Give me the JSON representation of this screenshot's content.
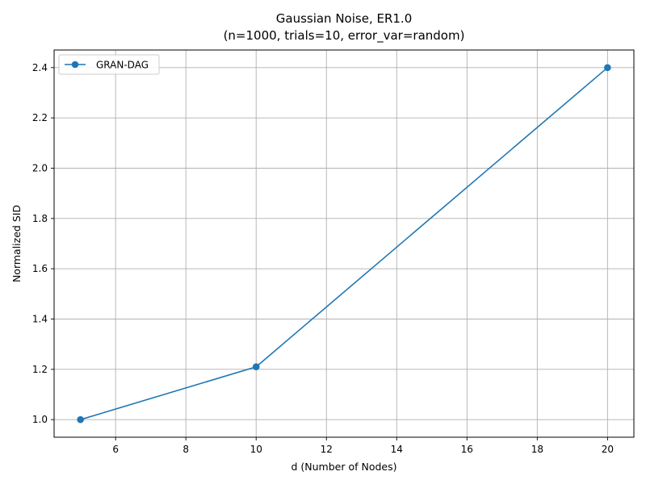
{
  "chart_data": {
    "type": "line",
    "title": "Gaussian Noise, ER1.0",
    "subtitle": "(n=1000, trials=10, error_var=random)",
    "xlabel": "d (Number of Nodes)",
    "ylabel": "Normalized SID",
    "xlim": [
      4.25,
      20.75
    ],
    "ylim": [
      0.93,
      2.47
    ],
    "xticks": [
      6,
      8,
      10,
      12,
      14,
      16,
      18,
      20
    ],
    "yticks": [
      1.0,
      1.2,
      1.4,
      1.6,
      1.8,
      2.0,
      2.2,
      2.4
    ],
    "grid": true,
    "legend_position": "upper-left",
    "series": [
      {
        "name": "GRAN-DAG",
        "color": "#1f77b4",
        "marker": "circle",
        "x": [
          5,
          10,
          20
        ],
        "y": [
          1.0,
          1.21,
          2.4
        ]
      }
    ]
  }
}
